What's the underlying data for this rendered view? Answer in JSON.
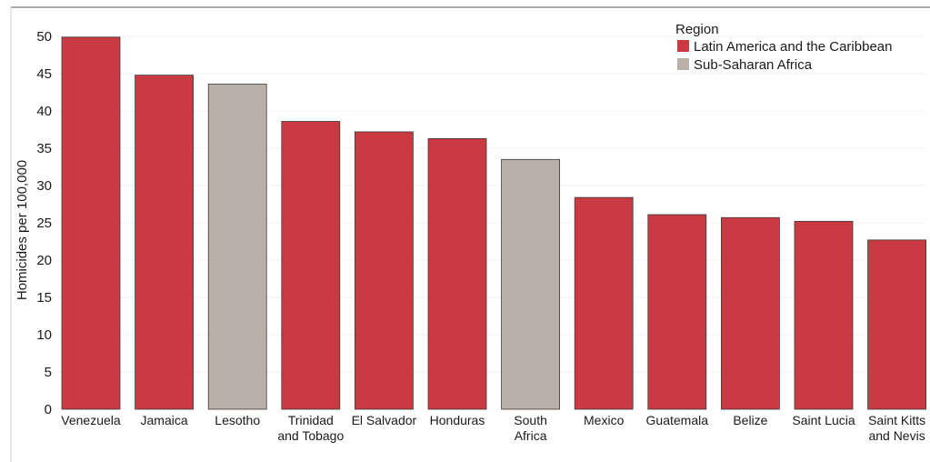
{
  "chart_data": {
    "type": "bar",
    "ylabel": "Homicides per 100,000",
    "ylim": [
      0,
      50
    ],
    "yticks": [
      0,
      5,
      10,
      15,
      20,
      25,
      30,
      35,
      40,
      45,
      50
    ],
    "grid": true,
    "legend": {
      "title": "Region",
      "placement": "top-right",
      "entries": [
        {
          "name": "Latin America and the Caribbean",
          "color": "#c93a43"
        },
        {
          "name": "Sub-Saharan Africa",
          "color": "#bab0aa"
        }
      ]
    },
    "bars": [
      {
        "category": [
          "Venezuela"
        ],
        "value": 49.9,
        "region": 0
      },
      {
        "category": [
          "Jamaica"
        ],
        "value": 44.8,
        "region": 0
      },
      {
        "category": [
          "Lesotho"
        ],
        "value": 43.6,
        "region": 1
      },
      {
        "category": [
          "Trinidad",
          "and Tobago"
        ],
        "value": 38.6,
        "region": 0
      },
      {
        "category": [
          "El Salvador"
        ],
        "value": 37.2,
        "region": 0
      },
      {
        "category": [
          "Honduras"
        ],
        "value": 36.3,
        "region": 0
      },
      {
        "category": [
          "South",
          "Africa"
        ],
        "value": 33.5,
        "region": 1
      },
      {
        "category": [
          "Mexico"
        ],
        "value": 28.4,
        "region": 0
      },
      {
        "category": [
          "Guatemala"
        ],
        "value": 26.1,
        "region": 0
      },
      {
        "category": [
          "Belize"
        ],
        "value": 25.7,
        "region": 0
      },
      {
        "category": [
          "Saint Lucia"
        ],
        "value": 25.2,
        "region": 0
      },
      {
        "category": [
          "Saint Kitts",
          "and Nevis"
        ],
        "value": 22.7,
        "region": 0
      }
    ]
  }
}
